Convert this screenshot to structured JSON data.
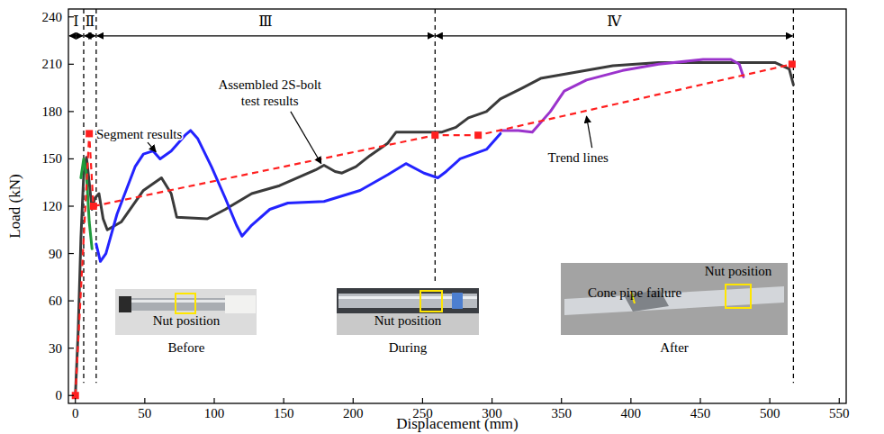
{
  "chart_data": {
    "type": "line",
    "x_label": "Displacement (mm)",
    "y_label": "Load (kN)",
    "xlim": [
      -5,
      555
    ],
    "ylim": [
      -5,
      245
    ],
    "xticks": [
      0,
      50,
      100,
      150,
      200,
      250,
      300,
      350,
      400,
      450,
      500,
      550
    ],
    "yticks": [
      0,
      30,
      60,
      90,
      120,
      150,
      180,
      210,
      240
    ],
    "grid": false,
    "series": [
      {
        "color": "#3a3a3a",
        "line_style": "solid",
        "x": [
          0,
          2,
          4,
          6,
          8,
          10,
          12,
          14,
          17,
          20,
          23,
          33,
          49,
          62,
          69,
          73,
          95,
          108,
          127,
          147,
          173,
          179,
          187,
          192,
          202,
          212,
          225,
          231,
          251,
          264,
          274,
          283,
          296,
          306,
          322,
          335,
          348,
          361,
          387,
          420,
          465,
          504,
          514,
          517
        ],
        "values": [
          0,
          40,
          100,
          140,
          151,
          135,
          118,
          125,
          128,
          112,
          105,
          110,
          130,
          138,
          128,
          113,
          112,
          118,
          128,
          133,
          143,
          146,
          142,
          141,
          145,
          152,
          160,
          167,
          167,
          167,
          170,
          176,
          180,
          188,
          195,
          201,
          203,
          205,
          209,
          211,
          211,
          211,
          207,
          197
        ]
      },
      {
        "color": "#2323ff",
        "line_style": "solid",
        "x": [
          15,
          18,
          22,
          30,
          43,
          49,
          56,
          61,
          69,
          79,
          83,
          88,
          98,
          108,
          116,
          120,
          127,
          140,
          153,
          179,
          205,
          225,
          238,
          251,
          261,
          267,
          277,
          296,
          306
        ],
        "values": [
          96,
          85,
          90,
          115,
          145,
          153,
          155,
          150,
          155,
          165,
          168,
          163,
          145,
          125,
          108,
          101,
          108,
          118,
          122,
          123,
          130,
          140,
          147,
          141,
          138,
          142,
          150,
          156,
          166
        ]
      },
      {
        "color": "#1f9a3c",
        "line_style": "solid",
        "x": [
          4,
          6,
          8,
          10,
          12
        ],
        "values": [
          138,
          150,
          140,
          110,
          93
        ]
      },
      {
        "color": "#9b33cc",
        "line_style": "solid",
        "x": [
          306,
          319,
          329,
          342,
          352,
          368,
          394,
          420,
          452,
          472,
          478,
          481
        ],
        "values": [
          168,
          168,
          167,
          180,
          193,
          200,
          206,
          210,
          213,
          213,
          210,
          202
        ]
      },
      {
        "color": "#ff1f1f",
        "line_style": "dashed",
        "marker": "square",
        "x": [
          0,
          10,
          13,
          259,
          290,
          516
        ],
        "values": [
          0,
          166,
          120,
          165,
          165,
          210
        ]
      }
    ],
    "phases": [
      {
        "label": "Ⅰ",
        "start": -5,
        "end": 6
      },
      {
        "label": "Ⅱ",
        "start": 6,
        "end": 15
      },
      {
        "label": "Ⅲ",
        "start": 15,
        "end": 259
      },
      {
        "label": "Ⅳ",
        "start": 259,
        "end": 517
      }
    ],
    "boundaries": [
      {
        "x": 6,
        "y_end": 8
      },
      {
        "x": 15,
        "y_end": 8
      },
      {
        "x": 259,
        "y_end": 72
      },
      {
        "x": 517,
        "y_end": 8
      }
    ],
    "annotations": [
      {
        "text": "Segment results",
        "x": 46,
        "y": 166,
        "arrow_from": [
          52,
          160.5
        ],
        "arrow_to": [
          58,
          154.5
        ]
      },
      {
        "text": "Assembled 2S-bolt test results",
        "x": 140,
        "y": 192,
        "arrow_from": [
          155,
          180
        ],
        "arrow_to": [
          177,
          147
        ]
      },
      {
        "text": "Trend lines",
        "x": 362,
        "y": 151,
        "arrow_from": [
          372,
          157
        ],
        "arrow_to": [
          368,
          177
        ]
      }
    ],
    "insets": [
      {
        "labels": [
          "Nut position"
        ],
        "caption": "Before"
      },
      {
        "labels": [
          "Nut position"
        ],
        "caption": "During"
      },
      {
        "labels": [
          "Nut position",
          "Cone pipe failure"
        ],
        "caption": "After"
      }
    ]
  }
}
